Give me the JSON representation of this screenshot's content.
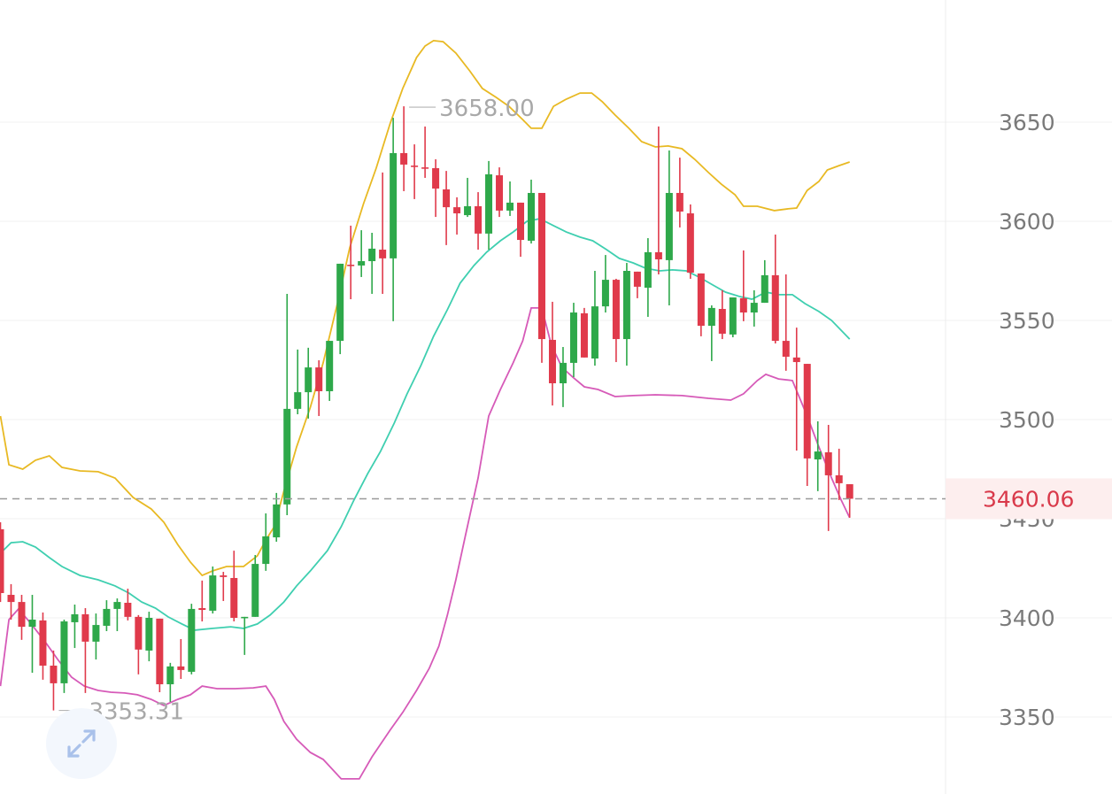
{
  "chart_data": {
    "type": "candlestick",
    "title": "",
    "xlabel": "",
    "ylabel": "",
    "ylim": [
      3311.2,
      3711.6
    ],
    "y_ticks": [
      "3650",
      "3600",
      "3550",
      "3500",
      "3450",
      "3400",
      "3350"
    ],
    "grid": true,
    "colors": {
      "up": "#2ea84a",
      "down": "#e03a4b",
      "upper_band": "#e8b923",
      "middle_band": "#3fcfb0",
      "lower_band": "#d65ab8",
      "price_line": "#9a9a9a",
      "price_label_bg": "#fdeeee",
      "price_label_text": "#d9394a"
    },
    "candles_ohlc": [
      [
        3444.7,
        3448.2,
        3408.0,
        3412.5
      ],
      [
        3411.6,
        3417.0,
        3399.1,
        3408.0
      ],
      [
        3408.0,
        3411.6,
        3388.9,
        3395.5
      ],
      [
        3395.5,
        3411.6,
        3372.3,
        3399.1
      ],
      [
        3398.7,
        3402.7,
        3368.8,
        3375.9
      ],
      [
        3375.9,
        3383.5,
        3353.31,
        3367.0
      ],
      [
        3367.0,
        3399.1,
        3362.1,
        3398.2
      ],
      [
        3397.8,
        3406.7,
        3384.8,
        3401.8
      ],
      [
        3401.8,
        3404.9,
        3362.1,
        3388.0
      ],
      [
        3388.0,
        3402.2,
        3379.0,
        3396.4
      ],
      [
        3396.0,
        3408.9,
        3393.3,
        3404.5
      ],
      [
        3404.5,
        3409.8,
        3393.3,
        3408.0
      ],
      [
        3407.6,
        3414.7,
        3398.7,
        3400.5
      ],
      [
        3400.5,
        3401.4,
        3371.5,
        3384.0
      ],
      [
        3383.5,
        3403.1,
        3378.1,
        3400.0
      ],
      [
        3399.6,
        3399.6,
        3362.5,
        3366.5
      ],
      [
        3366.5,
        3377.3,
        3357.6,
        3375.5
      ],
      [
        3375.5,
        3389.3,
        3369.2,
        3373.7
      ],
      [
        3372.8,
        3407.1,
        3371.5,
        3404.5
      ],
      [
        3404.9,
        3418.8,
        3398.2,
        3404.0
      ],
      [
        3403.6,
        3425.9,
        3402.2,
        3421.4
      ],
      [
        3421.4,
        3423.2,
        3408.5,
        3420.6
      ],
      [
        3420.1,
        3433.9,
        3398.2,
        3400.0
      ],
      [
        3400.0,
        3400.5,
        3381.3,
        3400.5
      ],
      [
        3400.5,
        3431.7,
        3400.5,
        3427.2
      ],
      [
        3427.2,
        3452.7,
        3423.7,
        3441.1
      ],
      [
        3440.6,
        3463.0,
        3438.4,
        3457.2
      ],
      [
        3457.2,
        3563.4,
        3451.8,
        3505.4
      ],
      [
        3505.4,
        3535.3,
        3502.7,
        3513.8
      ],
      [
        3513.8,
        3536.2,
        3500.5,
        3526.3
      ],
      [
        3526.3,
        3529.9,
        3501.8,
        3514.3
      ],
      [
        3514.3,
        3539.7,
        3509.4,
        3539.7
      ],
      [
        3539.7,
        3578.6,
        3533.0,
        3578.6
      ],
      [
        3578.1,
        3597.8,
        3560.7,
        3577.7
      ],
      [
        3577.7,
        3595.5,
        3571.9,
        3579.9
      ],
      [
        3579.9,
        3594.2,
        3563.4,
        3586.2
      ],
      [
        3585.7,
        3624.6,
        3563.4,
        3581.3
      ],
      [
        3581.3,
        3652.2,
        3549.6,
        3634.4
      ],
      [
        3634.4,
        3658.0,
        3615.2,
        3628.6
      ],
      [
        3628.1,
        3638.8,
        3611.2,
        3627.7
      ],
      [
        3627.2,
        3647.8,
        3621.9,
        3626.8
      ],
      [
        3626.8,
        3631.3,
        3602.2,
        3616.5
      ],
      [
        3616.1,
        3625.4,
        3588.0,
        3607.1
      ],
      [
        3607.1,
        3612.1,
        3593.3,
        3604.0
      ],
      [
        3603.1,
        3621.9,
        3602.2,
        3607.6
      ],
      [
        3607.6,
        3614.7,
        3585.7,
        3593.8
      ],
      [
        3593.8,
        3630.4,
        3585.7,
        3623.7
      ],
      [
        3623.2,
        3627.2,
        3602.2,
        3605.4
      ],
      [
        3605.4,
        3620.1,
        3602.7,
        3609.4
      ],
      [
        3609.4,
        3609.4,
        3582.1,
        3590.6
      ],
      [
        3590.2,
        3621.0,
        3588.8,
        3614.3
      ],
      [
        3614.3,
        3614.3,
        3528.6,
        3540.6
      ],
      [
        3540.2,
        3559.4,
        3507.1,
        3518.3
      ],
      [
        3518.3,
        3536.6,
        3506.3,
        3528.6
      ],
      [
        3528.6,
        3558.9,
        3521.4,
        3554.0
      ],
      [
        3553.6,
        3556.3,
        3531.3,
        3531.3
      ],
      [
        3530.8,
        3575.0,
        3527.2,
        3557.1
      ],
      [
        3557.1,
        3583.0,
        3554.0,
        3570.5
      ],
      [
        3570.5,
        3571.0,
        3529.0,
        3540.6
      ],
      [
        3540.6,
        3579.0,
        3527.2,
        3575.0
      ],
      [
        3574.6,
        3574.6,
        3561.2,
        3567.0
      ],
      [
        3566.5,
        3591.5,
        3551.8,
        3584.4
      ],
      [
        3584.4,
        3647.8,
        3573.2,
        3580.8
      ],
      [
        3580.4,
        3635.7,
        3557.6,
        3614.3
      ],
      [
        3614.3,
        3632.1,
        3596.9,
        3604.9
      ],
      [
        3604.0,
        3608.5,
        3571.0,
        3574.1
      ],
      [
        3573.7,
        3573.7,
        3542.0,
        3547.3
      ],
      [
        3547.3,
        3557.6,
        3529.5,
        3556.3
      ],
      [
        3555.8,
        3565.2,
        3540.6,
        3543.3
      ],
      [
        3542.9,
        3561.6,
        3541.5,
        3561.6
      ],
      [
        3561.2,
        3585.3,
        3549.6,
        3554.0
      ],
      [
        3554.0,
        3565.2,
        3546.9,
        3558.9
      ],
      [
        3558.9,
        3580.4,
        3558.9,
        3572.8
      ],
      [
        3572.8,
        3593.3,
        3538.4,
        3539.7
      ],
      [
        3539.7,
        3573.2,
        3524.6,
        3531.7
      ],
      [
        3531.3,
        3546.4,
        3484.4,
        3529.0
      ],
      [
        3528.1,
        3528.1,
        3466.5,
        3480.4
      ],
      [
        3479.9,
        3499.1,
        3463.9,
        3483.9
      ],
      [
        3483.5,
        3497.3,
        3443.8,
        3471.9
      ],
      [
        3471.9,
        3485.3,
        3459.4,
        3467.9
      ],
      [
        3467.4,
        3467.4,
        3450.5,
        3460.06
      ]
    ],
    "bands": {
      "upper": [
        [
          0,
          3501.8
        ],
        [
          0.8,
          3477.2
        ],
        [
          2.1,
          3475.0
        ],
        [
          3.3,
          3479.5
        ],
        [
          4.6,
          3481.7
        ],
        [
          5.8,
          3475.9
        ],
        [
          7.5,
          3474.1
        ],
        [
          9.2,
          3473.7
        ],
        [
          10.8,
          3470.5
        ],
        [
          12.5,
          3460.7
        ],
        [
          14.2,
          3454.9
        ],
        [
          15.4,
          3448.2
        ],
        [
          16.7,
          3437.0
        ],
        [
          17.9,
          3428.1
        ],
        [
          19.0,
          3421.4
        ],
        [
          20.0,
          3423.7
        ],
        [
          21.3,
          3425.9
        ],
        [
          22.9,
          3425.9
        ],
        [
          24.2,
          3431.3
        ],
        [
          25.0,
          3439.3
        ],
        [
          25.8,
          3446.0
        ],
        [
          26.7,
          3463.9
        ],
        [
          27.9,
          3486.2
        ],
        [
          29.2,
          3506.3
        ],
        [
          30.4,
          3528.6
        ],
        [
          31.7,
          3557.6
        ],
        [
          32.9,
          3586.6
        ],
        [
          34.2,
          3608.9
        ],
        [
          35.4,
          3626.8
        ],
        [
          36.7,
          3649.1
        ],
        [
          37.9,
          3667.0
        ],
        [
          39.2,
          3682.6
        ],
        [
          40.0,
          3688.4
        ],
        [
          40.8,
          3691.1
        ],
        [
          41.7,
          3690.6
        ],
        [
          42.9,
          3684.8
        ],
        [
          44.2,
          3675.9
        ],
        [
          45.4,
          3667.0
        ],
        [
          46.7,
          3662.5
        ],
        [
          47.9,
          3658.0
        ],
        [
          49.2,
          3651.3
        ],
        [
          50.0,
          3646.9
        ],
        [
          51.0,
          3646.9
        ],
        [
          52.1,
          3658.0
        ],
        [
          53.3,
          3661.6
        ],
        [
          54.6,
          3664.7
        ],
        [
          55.7,
          3664.7
        ],
        [
          56.7,
          3660.3
        ],
        [
          57.9,
          3653.6
        ],
        [
          59.2,
          3646.9
        ],
        [
          60.4,
          3640.2
        ],
        [
          61.7,
          3637.5
        ],
        [
          62.9,
          3638.0
        ],
        [
          64.2,
          3636.6
        ],
        [
          65.4,
          3631.3
        ],
        [
          66.7,
          3624.6
        ],
        [
          67.9,
          3618.8
        ],
        [
          69.2,
          3613.4
        ],
        [
          70.0,
          3607.6
        ],
        [
          71.3,
          3607.6
        ],
        [
          72.9,
          3605.4
        ],
        [
          74.2,
          3606.3
        ],
        [
          75.0,
          3606.7
        ],
        [
          76.0,
          3615.6
        ],
        [
          77.1,
          3620.1
        ],
        [
          77.9,
          3625.9
        ],
        [
          79.0,
          3628.1
        ],
        [
          80.0,
          3629.9
        ]
      ],
      "middle": [
        [
          0,
          3432.6
        ],
        [
          1,
          3437.9
        ],
        [
          2.1,
          3438.4
        ],
        [
          3.3,
          3435.7
        ],
        [
          4.6,
          3430.4
        ],
        [
          5.8,
          3425.9
        ],
        [
          7.5,
          3421.4
        ],
        [
          9.2,
          3419.2
        ],
        [
          10.8,
          3416.1
        ],
        [
          12.1,
          3412.5
        ],
        [
          13.3,
          3408.0
        ],
        [
          14.6,
          3404.9
        ],
        [
          15.8,
          3400.5
        ],
        [
          17.1,
          3396.9
        ],
        [
          18.3,
          3393.8
        ],
        [
          20.0,
          3394.7
        ],
        [
          21.7,
          3395.5
        ],
        [
          22.9,
          3394.7
        ],
        [
          24.2,
          3396.9
        ],
        [
          25.4,
          3401.4
        ],
        [
          26.7,
          3408.0
        ],
        [
          27.9,
          3416.1
        ],
        [
          29.2,
          3423.7
        ],
        [
          30.8,
          3433.9
        ],
        [
          32.1,
          3446.0
        ],
        [
          33.3,
          3459.4
        ],
        [
          34.6,
          3472.8
        ],
        [
          35.8,
          3483.9
        ],
        [
          37.1,
          3498.2
        ],
        [
          38.3,
          3512.9
        ],
        [
          39.6,
          3527.2
        ],
        [
          40.8,
          3542.0
        ],
        [
          42.1,
          3555.4
        ],
        [
          43.3,
          3568.8
        ],
        [
          44.6,
          3577.7
        ],
        [
          45.8,
          3584.4
        ],
        [
          47.1,
          3590.2
        ],
        [
          48.3,
          3594.6
        ],
        [
          49.6,
          3600.0
        ],
        [
          50.8,
          3601.3
        ],
        [
          52.1,
          3597.8
        ],
        [
          53.3,
          3594.6
        ],
        [
          54.6,
          3592.0
        ],
        [
          55.8,
          3590.2
        ],
        [
          57.1,
          3585.7
        ],
        [
          58.3,
          3581.3
        ],
        [
          59.6,
          3579.0
        ],
        [
          60.8,
          3576.3
        ],
        [
          62.1,
          3575.0
        ],
        [
          63.3,
          3575.5
        ],
        [
          64.6,
          3575.0
        ],
        [
          65.8,
          3571.9
        ],
        [
          67.1,
          3567.9
        ],
        [
          68.3,
          3564.3
        ],
        [
          69.6,
          3562.1
        ],
        [
          70.8,
          3560.7
        ],
        [
          72.1,
          3564.3
        ],
        [
          73.3,
          3563.0
        ],
        [
          74.6,
          3563.0
        ],
        [
          75.8,
          3558.5
        ],
        [
          77.1,
          3554.5
        ],
        [
          78.3,
          3550.0
        ],
        [
          80,
          3540.6
        ]
      ],
      "lower": [
        [
          0,
          3365.6
        ],
        [
          0.8,
          3399.1
        ],
        [
          1.7,
          3404.5
        ],
        [
          2.9,
          3396.9
        ],
        [
          4.2,
          3388.0
        ],
        [
          5.4,
          3379.0
        ],
        [
          6.7,
          3370.1
        ],
        [
          7.9,
          3365.6
        ],
        [
          9.2,
          3363.4
        ],
        [
          10.4,
          3362.5
        ],
        [
          11.7,
          3362.1
        ],
        [
          12.9,
          3361.2
        ],
        [
          14.2,
          3358.9
        ],
        [
          15.4,
          3355.8
        ],
        [
          16.7,
          3358.9
        ],
        [
          17.9,
          3361.2
        ],
        [
          19.0,
          3365.6
        ],
        [
          20.4,
          3364.3
        ],
        [
          22.1,
          3364.3
        ],
        [
          23.8,
          3364.7
        ],
        [
          25.0,
          3365.6
        ],
        [
          25.8,
          3358.9
        ],
        [
          26.7,
          3347.8
        ],
        [
          27.9,
          3338.8
        ],
        [
          29.2,
          3332.1
        ],
        [
          30.4,
          3328.6
        ],
        [
          32.1,
          3318.8
        ],
        [
          33.8,
          3318.8
        ],
        [
          35.0,
          3329.9
        ],
        [
          36.7,
          3343.3
        ],
        [
          37.9,
          3352.3
        ],
        [
          39.2,
          3363.4
        ],
        [
          40.4,
          3374.6
        ],
        [
          41.3,
          3385.7
        ],
        [
          42.1,
          3401.4
        ],
        [
          42.9,
          3419.2
        ],
        [
          43.8,
          3441.5
        ],
        [
          45.0,
          3470.5
        ],
        [
          46.0,
          3501.8
        ],
        [
          47.1,
          3515.2
        ],
        [
          48.3,
          3528.6
        ],
        [
          49.2,
          3539.7
        ],
        [
          50.0,
          3556.3
        ],
        [
          51.0,
          3556.3
        ],
        [
          51.9,
          3537.5
        ],
        [
          52.9,
          3526.3
        ],
        [
          54.0,
          3521.0
        ],
        [
          55.0,
          3516.5
        ],
        [
          56.3,
          3515.2
        ],
        [
          57.9,
          3511.6
        ],
        [
          59.6,
          3512.1
        ],
        [
          61.7,
          3512.5
        ],
        [
          64.2,
          3512.1
        ],
        [
          66.7,
          3510.7
        ],
        [
          68.8,
          3509.8
        ],
        [
          70.0,
          3513.0
        ],
        [
          71.3,
          3519.7
        ],
        [
          72.1,
          3522.8
        ],
        [
          73.3,
          3520.5
        ],
        [
          74.6,
          3519.7
        ],
        [
          76.0,
          3501.8
        ],
        [
          77.1,
          3486.2
        ],
        [
          78.3,
          3470.5
        ],
        [
          79.2,
          3459.4
        ],
        [
          80.0,
          3450.5
        ]
      ]
    },
    "annotations": {
      "high": {
        "text": "3658.00",
        "value": 3658.0,
        "candle": 38
      },
      "low": {
        "text": "3353.31",
        "value": 3353.31,
        "candle": 5
      }
    },
    "last_price": {
      "text": "3460.06",
      "value": 3460.06
    }
  },
  "controls": {
    "fullscreen_icon": "expand-arrows-icon"
  }
}
